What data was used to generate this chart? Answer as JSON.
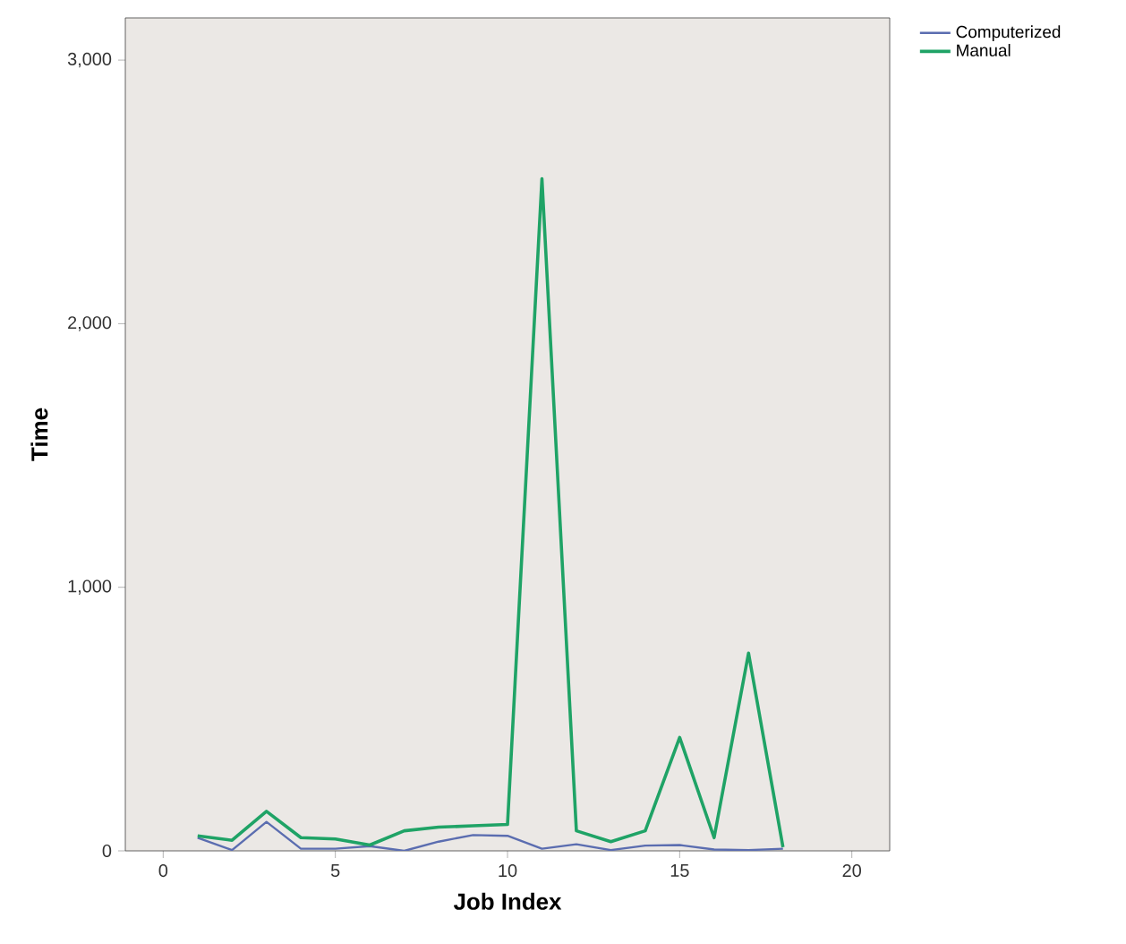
{
  "chart_data": {
    "type": "line",
    "xlabel": "Job Index",
    "ylabel": "Time",
    "x": [
      1,
      2,
      3,
      4,
      5,
      6,
      7,
      8,
      9,
      10,
      11,
      12,
      13,
      14,
      15,
      16,
      17,
      18
    ],
    "series": [
      {
        "name": "Computerized",
        "color": "#5b6db0",
        "values": [
          50,
          3,
          110,
          8,
          8,
          18,
          0,
          35,
          60,
          57,
          8,
          25,
          3,
          20,
          22,
          5,
          3,
          8
        ]
      },
      {
        "name": "Manual",
        "color": "#1fa366",
        "values": [
          57,
          40,
          150,
          50,
          45,
          22,
          76,
          90,
          95,
          100,
          2550,
          76,
          35,
          76,
          430,
          50,
          750,
          14
        ]
      }
    ],
    "xlim": [
      -1.1,
      21.1
    ],
    "ylim": [
      0,
      3160
    ],
    "xticks": [
      0,
      5,
      10,
      15,
      20
    ],
    "yticks": [
      0,
      {
        "value": 1000,
        "label": "1,000"
      },
      {
        "value": 2000,
        "label": "2,000"
      },
      {
        "value": 3000,
        "label": "3,000"
      }
    ],
    "grid": false,
    "legend": "top right",
    "line_style": "solid"
  }
}
